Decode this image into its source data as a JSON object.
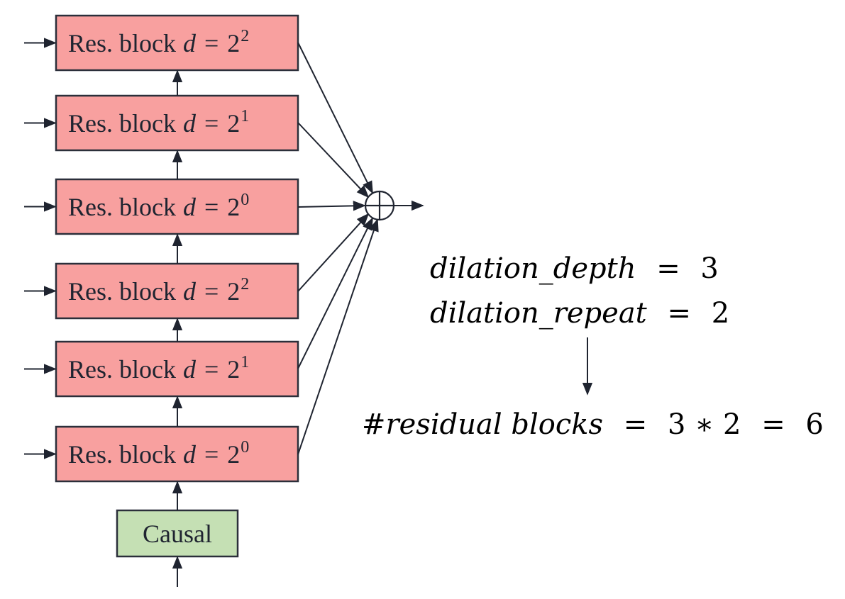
{
  "colors": {
    "res_block_fill": "#f8a09f",
    "causal_fill": "#c5e0b4",
    "stroke": "#2b2f3a",
    "arrow": "#1f2430"
  },
  "causal": {
    "label": "Causal"
  },
  "res_blocks": [
    {
      "label": "Res. block",
      "d_symbol": "d",
      "eq": "=",
      "base": "2",
      "exponent": "2"
    },
    {
      "label": "Res. block",
      "d_symbol": "d",
      "eq": "=",
      "base": "2",
      "exponent": "1"
    },
    {
      "label": "Res. block",
      "d_symbol": "d",
      "eq": "=",
      "base": "2",
      "exponent": "0"
    },
    {
      "label": "Res. block",
      "d_symbol": "d",
      "eq": "=",
      "base": "2",
      "exponent": "2"
    },
    {
      "label": "Res. block",
      "d_symbol": "d",
      "eq": "=",
      "base": "2",
      "exponent": "1"
    },
    {
      "label": "Res. block",
      "d_symbol": "d",
      "eq": "=",
      "base": "2",
      "exponent": "0"
    }
  ],
  "sum_node": {
    "icon": "circled-plus-icon"
  },
  "formulas": {
    "depth": {
      "name": "dilation_depth",
      "eq": "=",
      "value": "3"
    },
    "repeat": {
      "name": "dilation_repeat",
      "eq": "=",
      "value": "2"
    },
    "result": {
      "name": "#residual blocks",
      "eq": "=",
      "expr": "3 ∗ 2",
      "eq2": "=",
      "value": "6"
    }
  }
}
